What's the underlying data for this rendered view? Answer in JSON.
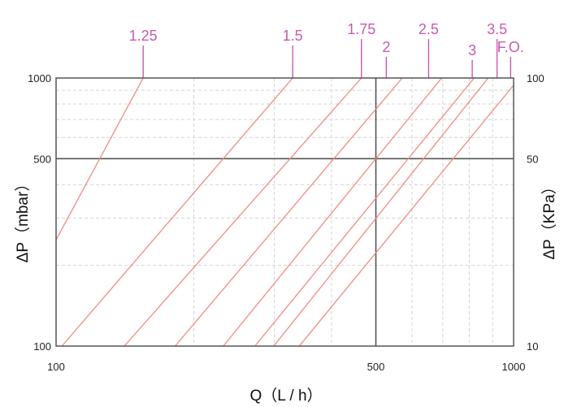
{
  "chart_data": {
    "type": "line",
    "title": "",
    "xlabel": "Q（L / h）",
    "ylabel": "ΔP（mbar）",
    "ylabel_right": "ΔP（KPa）",
    "x_scale": "log",
    "y_scale": "log",
    "xlim": [
      100,
      1000
    ],
    "ylim": [
      100,
      1000
    ],
    "x_ticks": [
      {
        "value": 100,
        "label": "100"
      },
      {
        "value": 500,
        "label": "500"
      },
      {
        "value": 1000,
        "label": "1000"
      }
    ],
    "y_ticks": [
      {
        "value": 100,
        "label": "100"
      },
      {
        "value": 500,
        "label": "500"
      },
      {
        "value": 1000,
        "label": "1000"
      }
    ],
    "y_ticks_right": [
      {
        "value": 100,
        "label": "10"
      },
      {
        "value": 500,
        "label": "50"
      },
      {
        "value": 1000,
        "label": "100"
      }
    ],
    "minor_x": [
      200,
      300,
      400,
      600,
      700,
      800,
      900
    ],
    "minor_y": [
      200,
      300,
      400,
      600,
      700,
      800,
      900
    ],
    "ref_lines": {
      "x": 500,
      "y": 500
    },
    "grid": true,
    "line_color": "#f08c84",
    "label_color": "#c75bb0",
    "series": [
      {
        "name": "1.25",
        "label_x": 155,
        "points": [
          {
            "x": 75,
            "y": 100
          },
          {
            "x": 155,
            "y": 1000
          }
        ]
      },
      {
        "name": "1.5",
        "label_x": 329,
        "points": [
          {
            "x": 103,
            "y": 100
          },
          {
            "x": 329,
            "y": 1000
          }
        ]
      },
      {
        "name": "1.75",
        "label_x": 465,
        "points": [
          {
            "x": 141,
            "y": 100
          },
          {
            "x": 465,
            "y": 1000
          }
        ]
      },
      {
        "name": "2",
        "label_x": 527,
        "points": [
          {
            "x": 182,
            "y": 100
          },
          {
            "x": 571,
            "y": 1000
          }
        ]
      },
      {
        "name": "2.5",
        "label_x": 652,
        "points": [
          {
            "x": 232,
            "y": 100
          },
          {
            "x": 696,
            "y": 1000
          }
        ]
      },
      {
        "name": "3",
        "label_x": 812,
        "points": [
          {
            "x": 272,
            "y": 100
          },
          {
            "x": 820,
            "y": 1000
          }
        ]
      },
      {
        "name": "3.5",
        "label_x": 920,
        "points": [
          {
            "x": 299,
            "y": 100
          },
          {
            "x": 880,
            "y": 1000
          }
        ]
      },
      {
        "name": "F.O.",
        "label_x": 985,
        "points": [
          {
            "x": 340,
            "y": 100
          },
          {
            "x": 1000,
            "y": 940
          }
        ]
      }
    ]
  }
}
